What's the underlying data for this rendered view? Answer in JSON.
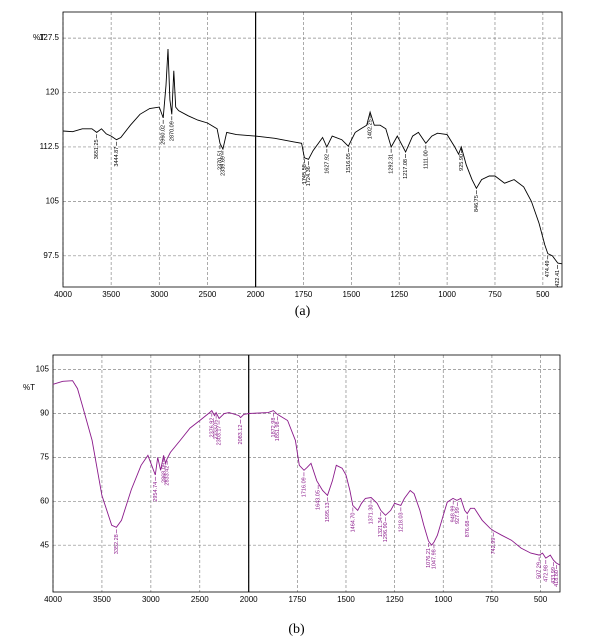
{
  "chart_data": [
    {
      "type": "line",
      "caption": "(a)",
      "ylabel": "%T",
      "grid": true,
      "divider": 2000,
      "xlim": [
        4000,
        400
      ],
      "ylim": [
        93.2,
        131.1
      ],
      "xticks": [
        4000,
        3500,
        3000,
        2500,
        2000,
        1750,
        1500,
        1250,
        1000,
        750,
        500
      ],
      "yticks": [
        97.5,
        105,
        112.5,
        120,
        127.5
      ],
      "color": "#000000",
      "x": [
        4000,
        3900,
        3800,
        3700,
        3650,
        3600,
        3550,
        3500,
        3445,
        3400,
        3300,
        3200,
        3100,
        3000,
        2960,
        2930,
        2910,
        2890,
        2870,
        2850,
        2830,
        2800,
        2700,
        2600,
        2500,
        2400,
        2370,
        2340,
        2300,
        2200,
        2000,
        1900,
        1800,
        1760,
        1745,
        1724,
        1700,
        1650,
        1628,
        1600,
        1550,
        1516,
        1480,
        1450,
        1420,
        1402,
        1380,
        1350,
        1320,
        1292,
        1260,
        1217,
        1180,
        1150,
        1111,
        1080,
        1050,
        1000,
        960,
        940,
        926,
        900,
        870,
        847,
        820,
        780,
        750,
        700,
        650,
        600,
        560,
        520,
        490,
        474,
        450,
        422,
        400
      ],
      "values": [
        114.7,
        114.6,
        115,
        115,
        114.5,
        115,
        114.3,
        114,
        113.5,
        113.8,
        115.5,
        117,
        117.8,
        118,
        116.5,
        121,
        126,
        119,
        117,
        123,
        118,
        117.5,
        116.8,
        116.2,
        115.8,
        115,
        113,
        112.2,
        114.5,
        114.2,
        114,
        113.7,
        113.2,
        113,
        111,
        110.8,
        112,
        113.8,
        112.5,
        114,
        113.5,
        112.6,
        114.5,
        115,
        115.5,
        117.3,
        115.5,
        115.5,
        115,
        112.5,
        114,
        111.8,
        114,
        114.5,
        113,
        114,
        114.4,
        114.2,
        112.5,
        111.5,
        112.5,
        110,
        108,
        106.8,
        108,
        108.5,
        108.5,
        107.5,
        108,
        107,
        105,
        102,
        99,
        97.8,
        97.5,
        96.5,
        96.4
      ],
      "peaks": [
        {
          "value": 3651.25,
          "label": "3651.25"
        },
        {
          "value": 3444.87,
          "label": "3444.87"
        },
        {
          "value": 2960.02,
          "label": "2960.02"
        },
        {
          "value": 2870.09,
          "label": "2870.09"
        },
        {
          "value": 2370.51,
          "label": "2370.51"
        },
        {
          "value": 2339.69,
          "label": "2339.69"
        },
        {
          "value": 1745.58,
          "label": "1745.58"
        },
        {
          "value": 1724.36,
          "label": "1724.36"
        },
        {
          "value": 1627.92,
          "label": "1627.92"
        },
        {
          "value": 1516.05,
          "label": "1516.05"
        },
        {
          "value": 1402.25,
          "label": "1402.25"
        },
        {
          "value": 1292.31,
          "label": "1292.31"
        },
        {
          "value": 1217.08,
          "label": "1217.08"
        },
        {
          "value": 1111.0,
          "label": "1111.00"
        },
        {
          "value": 925.9,
          "label": "925.90"
        },
        {
          "value": 846.75,
          "label": "846.75"
        },
        {
          "value": 474.49,
          "label": "474.49"
        },
        {
          "value": 422.41,
          "label": "422.41"
        }
      ]
    },
    {
      "type": "line",
      "caption": "(b)",
      "ylabel": "%T",
      "grid": true,
      "divider": 2000,
      "xlim": [
        4000,
        400
      ],
      "ylim": [
        29,
        110
      ],
      "xticks": [
        4000,
        3500,
        3000,
        2500,
        2000,
        1750,
        1500,
        1250,
        1000,
        750,
        500
      ],
      "yticks": [
        45,
        60,
        75,
        90,
        105
      ],
      "color": "#8b1a8b",
      "x": [
        4000,
        3900,
        3800,
        3750,
        3700,
        3600,
        3500,
        3400,
        3352,
        3300,
        3200,
        3100,
        3030,
        3000,
        2955,
        2930,
        2900,
        2870,
        2850,
        2833,
        2800,
        2700,
        2600,
        2500,
        2400,
        2377,
        2350,
        2333,
        2303,
        2250,
        2200,
        2100,
        2083,
        2050,
        2000,
        1900,
        1873,
        1852,
        1800,
        1760,
        1740,
        1716,
        1700,
        1680,
        1650,
        1620,
        1595,
        1570,
        1550,
        1520,
        1500,
        1480,
        1465,
        1440,
        1420,
        1400,
        1371,
        1340,
        1321,
        1297,
        1270,
        1250,
        1218,
        1200,
        1170,
        1150,
        1120,
        1100,
        1076,
        1060,
        1048,
        1030,
        1000,
        980,
        950,
        930,
        910,
        890,
        877,
        860,
        840,
        800,
        760,
        743,
        700,
        650,
        600,
        550,
        507,
        490,
        473,
        450,
        434,
        419,
        400
      ],
      "values": [
        100,
        101,
        101.2,
        98.5,
        92.7,
        80.8,
        62,
        51.8,
        51.1,
        53.5,
        64,
        72.3,
        75.7,
        73,
        69,
        75,
        70.6,
        75.7,
        73,
        74.6,
        76.7,
        80.8,
        85,
        87.6,
        90.3,
        91,
        89.3,
        90.3,
        88.3,
        90,
        90.3,
        89.3,
        88.6,
        89.7,
        90,
        90.3,
        91,
        89.7,
        87.6,
        80.8,
        72.3,
        70.6,
        71.6,
        73,
        67,
        63.7,
        62,
        67,
        72.3,
        71.3,
        69,
        63.7,
        58.6,
        56.9,
        59.3,
        61,
        61.3,
        59.3,
        56.9,
        55.2,
        56.9,
        59.3,
        58.6,
        61,
        63.7,
        62.6,
        56.9,
        51.8,
        46.4,
        45,
        46,
        48.4,
        55.2,
        59.7,
        61,
        60.3,
        61,
        56.9,
        55.8,
        57.6,
        57.6,
        53.5,
        50.8,
        50,
        48.4,
        46.7,
        44,
        42.3,
        41.6,
        42.3,
        40.6,
        41.6,
        39.9,
        38.9,
        38.2
      ],
      "peaks": [
        {
          "value": 3352.28,
          "label": "3352.28"
        },
        {
          "value": 2954.74,
          "label": "2954.74"
        },
        {
          "value": 2868.09,
          "label": "2868.09"
        },
        {
          "value": 2833.42,
          "label": "2833.42"
        },
        {
          "value": 2376.92,
          "label": "2376.92"
        },
        {
          "value": 2333.05,
          "label": "2333.05"
        },
        {
          "value": 2303.17,
          "label": "2303.17"
        },
        {
          "value": 2083.12,
          "label": "2083.12"
        },
        {
          "value": 1872.98,
          "label": "1872.98"
        },
        {
          "value": 1851.98,
          "label": "1851.98"
        },
        {
          "value": 1716.09,
          "label": "1716.09"
        },
        {
          "value": 1643.05,
          "label": "1643.05"
        },
        {
          "value": 1595.13,
          "label": "1595.13"
        },
        {
          "value": 1464.7,
          "label": "1464.70"
        },
        {
          "value": 1371.3,
          "label": "1371.30"
        },
        {
          "value": 1321.34,
          "label": "1321.34"
        },
        {
          "value": 1296.9,
          "label": "1296.90"
        },
        {
          "value": 1218.03,
          "label": "1218.03"
        },
        {
          "value": 1076.21,
          "label": "1076.21"
        },
        {
          "value": 1047.98,
          "label": "1047.98"
        },
        {
          "value": 948.99,
          "label": "948.99"
        },
        {
          "value": 927.99,
          "label": "927.99"
        },
        {
          "value": 876.68,
          "label": "876.68"
        },
        {
          "value": 742.99,
          "label": "742.99"
        },
        {
          "value": 507.29,
          "label": "507.29"
        },
        {
          "value": 472.98,
          "label": "472.98"
        },
        {
          "value": 433.99,
          "label": "433.99"
        },
        {
          "value": 418.8,
          "label": "418.80"
        }
      ]
    }
  ]
}
